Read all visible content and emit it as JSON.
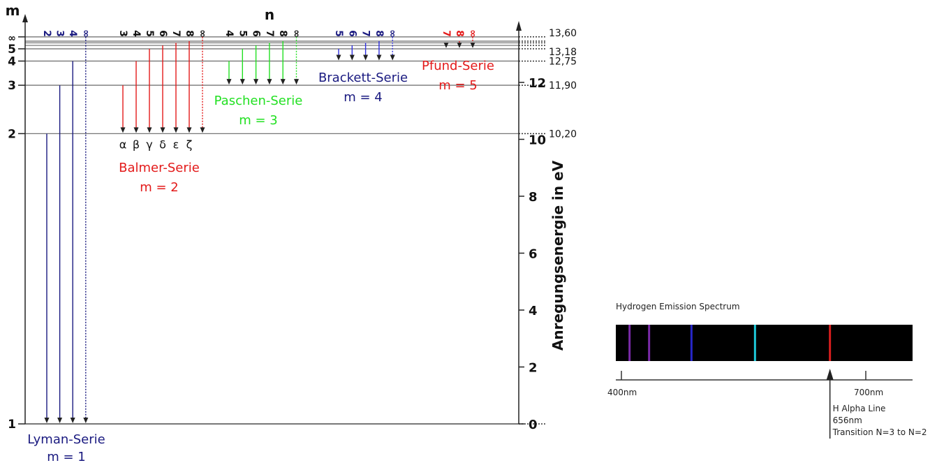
{
  "diagram": {
    "axis_m_label": "m",
    "axis_n_label": "n",
    "energy_axis_label": "Anregungsenergie in eV",
    "energy_ticks": [
      {
        "value": 0,
        "label": "0"
      },
      {
        "value": 2,
        "label": "2"
      },
      {
        "value": 4,
        "label": "4"
      },
      {
        "value": 6,
        "label": "6"
      },
      {
        "value": 8,
        "label": "8"
      },
      {
        "value": 10,
        "label": "10"
      },
      {
        "value": 12,
        "label": "12"
      }
    ],
    "levels": [
      {
        "n": 1,
        "label": "1",
        "energy": 0,
        "value_label": "0"
      },
      {
        "n": 2,
        "label": "2",
        "energy": 10.2,
        "value_label": "10,20"
      },
      {
        "n": 3,
        "label": "3",
        "energy": 11.9,
        "value_label": "11,90"
      },
      {
        "n": 4,
        "label": "4",
        "energy": 12.75,
        "value_label": "12,75"
      },
      {
        "n": 5,
        "label": "5",
        "energy": 13.18,
        "value_label": "13,18"
      },
      {
        "n": 6,
        "label": "",
        "energy": 13.3,
        "value_label": ""
      },
      {
        "n": 7,
        "label": "",
        "energy": 13.39,
        "value_label": ""
      },
      {
        "n": 8,
        "label": "",
        "energy": 13.45,
        "value_label": ""
      },
      {
        "n": "inf",
        "label": "∞",
        "energy": 13.6,
        "value_label": "13,60"
      }
    ],
    "series": [
      {
        "name": "Lyman-Serie",
        "m_label": "m = 1",
        "color": "#1a1a80",
        "lower": 1,
        "uppers": [
          2,
          3,
          4,
          "inf"
        ],
        "n_labels": [
          "2",
          "3",
          "4",
          "∞"
        ],
        "greek": []
      },
      {
        "name": "Balmer-Serie",
        "m_label": "m = 2",
        "color": "#e31a1a",
        "lower": 2,
        "uppers": [
          3,
          4,
          5,
          6,
          7,
          8,
          "inf"
        ],
        "n_labels": [
          "3",
          "4",
          "5",
          "6",
          "7",
          "8",
          "∞"
        ],
        "greek": [
          "α",
          "β",
          "γ",
          "δ",
          "ε",
          "ζ"
        ]
      },
      {
        "name": "Paschen-Serie",
        "m_label": "m = 3",
        "color": "#22e022",
        "lower": 3,
        "uppers": [
          4,
          5,
          6,
          7,
          8,
          "inf"
        ],
        "n_labels": [
          "4",
          "5",
          "6",
          "7",
          "8",
          "∞"
        ],
        "greek": []
      },
      {
        "name": "Brackett-Serie",
        "m_label": "m = 4",
        "color": "#1a1a80",
        "arrow_color": "#3030e0",
        "lower": 4,
        "uppers": [
          5,
          6,
          7,
          8,
          "inf"
        ],
        "n_labels": [
          "5",
          "6",
          "7",
          "8",
          "∞"
        ],
        "greek": []
      },
      {
        "name": "Pfund-Serie",
        "m_label": "m = 5",
        "color": "#e31a1a",
        "lower": 5,
        "uppers": [
          7,
          8,
          "inf"
        ],
        "n_labels": [
          "7",
          "8",
          "∞"
        ],
        "greek": []
      }
    ]
  },
  "spectrum": {
    "title": "Hydrogen Emission Spectrum",
    "range_nm": [
      400,
      700
    ],
    "lines": [
      {
        "nm": 410,
        "color": "#7a2aa8"
      },
      {
        "nm": 434,
        "color": "#7a2aa8"
      },
      {
        "nm": 486,
        "color": "#2626c8"
      },
      {
        "nm": 564,
        "color": "#1ec8d8"
      },
      {
        "nm": 656,
        "color": "#d81e1e"
      }
    ],
    "tick_labels": [
      {
        "nm": 400,
        "label": "400nm"
      },
      {
        "nm": 700,
        "label": "700nm"
      }
    ],
    "annotation": {
      "nm": 656,
      "lines": [
        "H Alpha Line",
        "656nm",
        "Transition N=3 to N=2"
      ]
    }
  }
}
